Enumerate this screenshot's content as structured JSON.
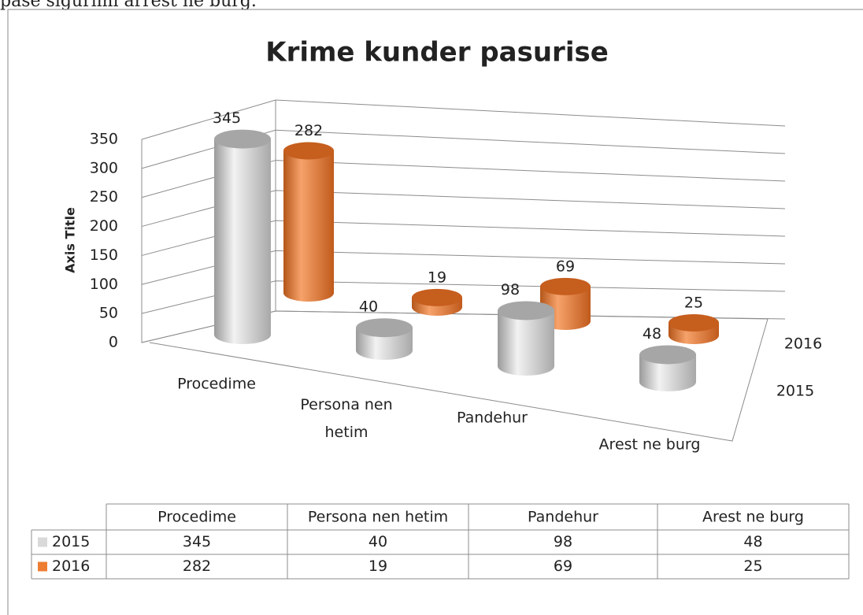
{
  "header_text": "pase sigurimi arrest ne burg.",
  "chart_data": {
    "type": "bar3d",
    "title": "Krime kunder pasurise",
    "y_axis_title": "Axis Title",
    "categories": [
      "Procedime",
      "Persona nen hetim",
      "Pandehur",
      "Arest ne burg"
    ],
    "series": [
      {
        "name": "2015",
        "color": "#d9d9d9",
        "values": [
          345,
          40,
          98,
          48
        ]
      },
      {
        "name": "2016",
        "color": "#ed7d31",
        "values": [
          282,
          19,
          69,
          25
        ]
      }
    ],
    "ylim": [
      0,
      350
    ],
    "yticks": [
      0,
      50,
      100,
      150,
      200,
      250,
      300,
      350
    ],
    "grid": true,
    "data_table": true
  }
}
